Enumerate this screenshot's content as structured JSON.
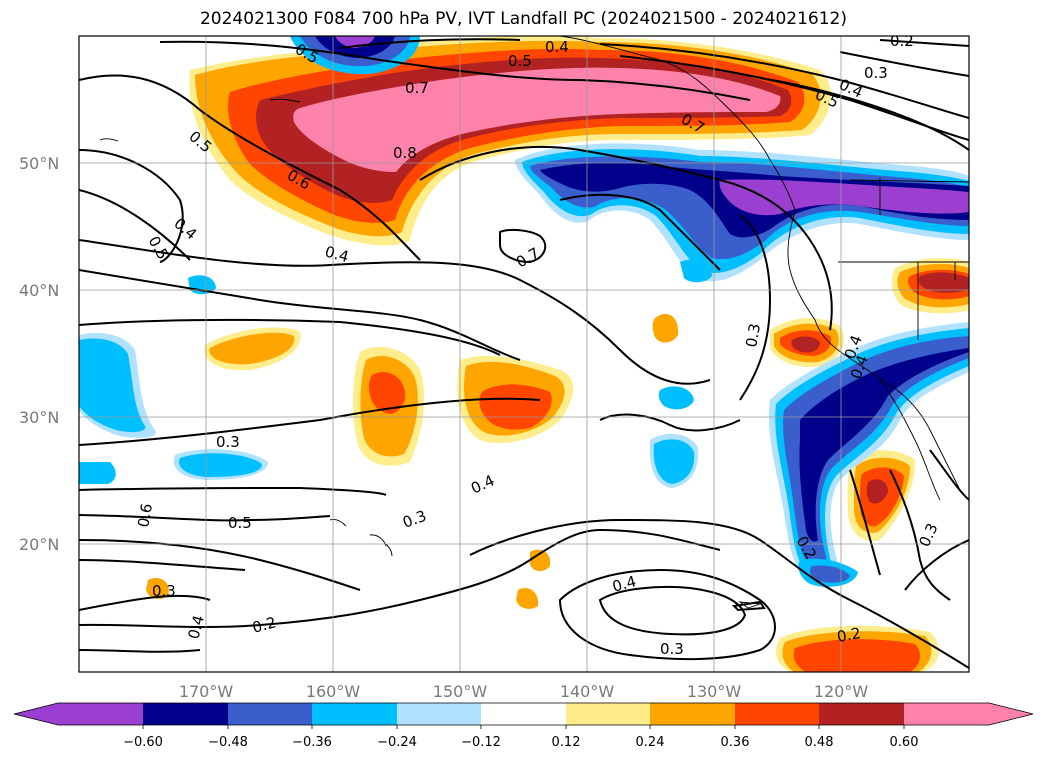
{
  "title": "2024021300 F084 700 hPa PV, IVT Landfall PC (2024021500 - 2024021612)",
  "lat_labels": [
    "50°N",
    "40°N",
    "30°N",
    "20°N"
  ],
  "lon_labels": [
    "170°W",
    "160°W",
    "150°W",
    "140°W",
    "130°W",
    "120°W"
  ],
  "colorbar": {
    "colors": [
      "#9b3fd1",
      "#00008b",
      "#3a5fcd",
      "#00bfff",
      "#b0e2ff",
      "#ffffff",
      "#ffec8b",
      "#ffa500",
      "#ff4500",
      "#b22222",
      "#ff82ab"
    ],
    "tick_labels": [
      "−0.60",
      "−0.48",
      "−0.36",
      "−0.24",
      "−0.12",
      "0.12",
      "0.24",
      "0.36",
      "0.48",
      "0.60"
    ]
  },
  "contour_labels": [
    "0.4",
    "0.5",
    "0.7",
    "0.8",
    "0.5",
    "0.6",
    "0.4",
    "0.5",
    "0.4",
    "0.7",
    "0.3",
    "0.4",
    "0.5",
    "0.2",
    "0.3",
    "0.4",
    "0.3",
    "0.3",
    "0.5",
    "0.6",
    "0.3",
    "0.4",
    "0.2",
    "0.4",
    "0.3",
    "0.2",
    "0.2",
    "0.3",
    "0.5",
    "0.7",
    "0.4",
    "0.4"
  ]
}
